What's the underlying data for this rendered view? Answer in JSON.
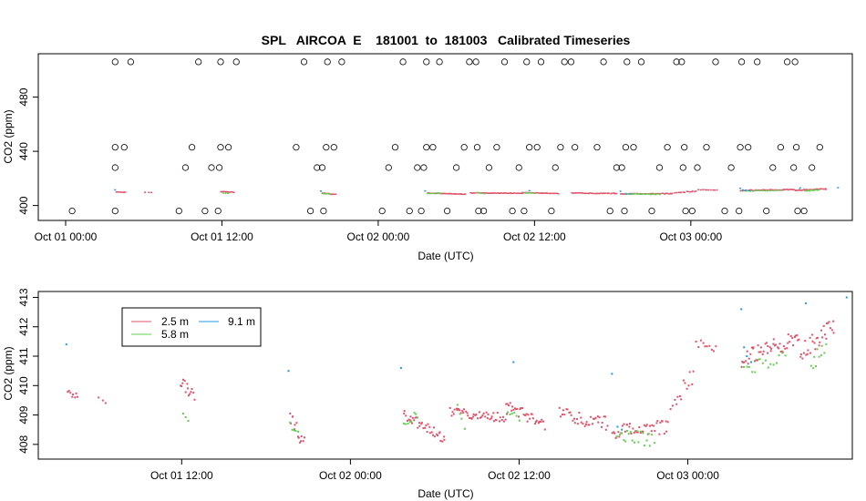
{
  "chart_data": [
    {
      "type": "scatter",
      "title": "SPL   AIRCOA  E    181001  to  181003   Calibrated Timeseries",
      "xlabel": "Date (UTC)",
      "ylabel": "CO2 (ppm)",
      "x_ticks": [
        "Oct 01 00:00",
        "Oct 01 12:00",
        "Oct 02 00:00",
        "Oct 02 12:00",
        "Oct 03 00:00"
      ],
      "x_tick_hours": [
        0,
        12,
        24,
        36,
        48
      ],
      "xlim_hours": [
        -2.1,
        60.4
      ],
      "y_ticks": [
        400,
        440,
        480
      ],
      "ylim": [
        389,
        512
      ],
      "reference_points": [
        {
          "h": 0.5,
          "v": 396
        },
        {
          "h": 3.8,
          "v": 396
        },
        {
          "h": 3.8,
          "v": 428
        },
        {
          "h": 3.8,
          "v": 443
        },
        {
          "h": 3.8,
          "v": 506
        },
        {
          "h": 4.5,
          "v": 443
        },
        {
          "h": 5.0,
          "v": 506
        },
        {
          "h": 8.7,
          "v": 396
        },
        {
          "h": 9.2,
          "v": 428
        },
        {
          "h": 9.7,
          "v": 443
        },
        {
          "h": 10.2,
          "v": 506
        },
        {
          "h": 10.7,
          "v": 396
        },
        {
          "h": 11.2,
          "v": 428
        },
        {
          "h": 11.7,
          "v": 396
        },
        {
          "h": 11.8,
          "v": 428
        },
        {
          "h": 11.9,
          "v": 443
        },
        {
          "h": 11.9,
          "v": 506
        },
        {
          "h": 12.5,
          "v": 443
        },
        {
          "h": 13.1,
          "v": 506
        },
        {
          "h": 17.7,
          "v": 443
        },
        {
          "h": 18.3,
          "v": 506
        },
        {
          "h": 18.8,
          "v": 396
        },
        {
          "h": 19.3,
          "v": 428
        },
        {
          "h": 19.7,
          "v": 428
        },
        {
          "h": 19.8,
          "v": 396
        },
        {
          "h": 20.0,
          "v": 443
        },
        {
          "h": 20.1,
          "v": 506
        },
        {
          "h": 20.6,
          "v": 443
        },
        {
          "h": 21.2,
          "v": 506
        },
        {
          "h": 24.3,
          "v": 396
        },
        {
          "h": 24.8,
          "v": 428
        },
        {
          "h": 25.3,
          "v": 443
        },
        {
          "h": 25.9,
          "v": 506
        },
        {
          "h": 26.4,
          "v": 396
        },
        {
          "h": 27.0,
          "v": 428
        },
        {
          "h": 27.3,
          "v": 396
        },
        {
          "h": 27.5,
          "v": 428
        },
        {
          "h": 27.7,
          "v": 443
        },
        {
          "h": 27.7,
          "v": 506
        },
        {
          "h": 28.2,
          "v": 443
        },
        {
          "h": 28.7,
          "v": 506
        },
        {
          "h": 29.3,
          "v": 396
        },
        {
          "h": 30.0,
          "v": 428
        },
        {
          "h": 30.6,
          "v": 443
        },
        {
          "h": 31.0,
          "v": 506
        },
        {
          "h": 31.5,
          "v": 506
        },
        {
          "h": 31.6,
          "v": 443
        },
        {
          "h": 31.7,
          "v": 396
        },
        {
          "h": 32.1,
          "v": 396
        },
        {
          "h": 32.5,
          "v": 428
        },
        {
          "h": 33.1,
          "v": 443
        },
        {
          "h": 33.7,
          "v": 506
        },
        {
          "h": 34.3,
          "v": 396
        },
        {
          "h": 34.8,
          "v": 428
        },
        {
          "h": 35.2,
          "v": 396
        },
        {
          "h": 35.4,
          "v": 506
        },
        {
          "h": 35.6,
          "v": 443
        },
        {
          "h": 36.2,
          "v": 443
        },
        {
          "h": 36.5,
          "v": 506
        },
        {
          "h": 37.3,
          "v": 396
        },
        {
          "h": 37.6,
          "v": 428
        },
        {
          "h": 38.0,
          "v": 443
        },
        {
          "h": 38.3,
          "v": 506
        },
        {
          "h": 38.8,
          "v": 506
        },
        {
          "h": 39.1,
          "v": 443
        },
        {
          "h": 40.8,
          "v": 443
        },
        {
          "h": 41.3,
          "v": 506
        },
        {
          "h": 41.8,
          "v": 396
        },
        {
          "h": 42.3,
          "v": 428
        },
        {
          "h": 42.7,
          "v": 428
        },
        {
          "h": 42.9,
          "v": 396
        },
        {
          "h": 43.0,
          "v": 443
        },
        {
          "h": 43.1,
          "v": 506
        },
        {
          "h": 43.6,
          "v": 443
        },
        {
          "h": 44.2,
          "v": 506
        },
        {
          "h": 45.0,
          "v": 396
        },
        {
          "h": 45.6,
          "v": 428
        },
        {
          "h": 46.2,
          "v": 443
        },
        {
          "h": 46.9,
          "v": 506
        },
        {
          "h": 47.3,
          "v": 506
        },
        {
          "h": 47.4,
          "v": 428
        },
        {
          "h": 47.5,
          "v": 443
        },
        {
          "h": 47.6,
          "v": 396
        },
        {
          "h": 48.1,
          "v": 396
        },
        {
          "h": 48.5,
          "v": 428
        },
        {
          "h": 49.2,
          "v": 443
        },
        {
          "h": 49.9,
          "v": 506
        },
        {
          "h": 50.6,
          "v": 396
        },
        {
          "h": 51.1,
          "v": 428
        },
        {
          "h": 51.7,
          "v": 396
        },
        {
          "h": 51.8,
          "v": 443
        },
        {
          "h": 51.9,
          "v": 506
        },
        {
          "h": 52.4,
          "v": 443
        },
        {
          "h": 53.1,
          "v": 506
        },
        {
          "h": 53.8,
          "v": 396
        },
        {
          "h": 54.3,
          "v": 428
        },
        {
          "h": 54.9,
          "v": 443
        },
        {
          "h": 55.4,
          "v": 506
        },
        {
          "h": 55.9,
          "v": 428
        },
        {
          "h": 56.0,
          "v": 506
        },
        {
          "h": 56.1,
          "v": 443
        },
        {
          "h": 56.2,
          "v": 396
        },
        {
          "h": 56.7,
          "v": 396
        },
        {
          "h": 57.3,
          "v": 428
        },
        {
          "h": 57.9,
          "v": 443
        }
      ]
    },
    {
      "type": "scatter",
      "xlabel": "Date (UTC)",
      "ylabel": "CO2 (ppm)",
      "x_ticks": [
        "Oct 01 12:00",
        "Oct 02 00:00",
        "Oct 02 12:00",
        "Oct 03 00:00"
      ],
      "x_tick_hours": [
        12,
        24,
        36,
        48
      ],
      "xlim_hours": [
        1.8,
        59.7
      ],
      "y_ticks": [
        408,
        409,
        410,
        411,
        412,
        413
      ],
      "ylim": [
        407.5,
        413.2
      ],
      "legend_position": "top-left",
      "series": [
        {
          "name": "2.5 m",
          "color": "#DF536B",
          "segments": [
            {
              "h0": 3.9,
              "h1": 4.6,
              "v0": 410.0,
              "v1": 409.6,
              "n": 8,
              "s": 0.22
            },
            {
              "h0": 6.1,
              "h1": 6.6,
              "v0": 409.6,
              "v1": 409.5,
              "n": 3,
              "s": 0.15
            },
            {
              "h0": 11.9,
              "h1": 12.9,
              "v0": 410.1,
              "v1": 409.7,
              "n": 14,
              "s": 0.22
            },
            {
              "h0": 19.7,
              "h1": 20.7,
              "v0": 409.0,
              "v1": 408.0,
              "n": 14,
              "s": 0.25
            },
            {
              "h0": 27.8,
              "h1": 30.7,
              "v0": 409.0,
              "v1": 408.2,
              "n": 36,
              "s": 0.2
            },
            {
              "h0": 31.1,
              "h1": 35.1,
              "v0": 409.1,
              "v1": 408.9,
              "n": 48,
              "s": 0.17
            },
            {
              "h0": 35.1,
              "h1": 37.8,
              "v0": 409.4,
              "v1": 408.6,
              "n": 32,
              "s": 0.2
            },
            {
              "h0": 38.9,
              "h1": 42.3,
              "v0": 409.0,
              "v1": 408.7,
              "n": 38,
              "s": 0.25
            },
            {
              "h0": 42.6,
              "h1": 46.6,
              "v0": 408.4,
              "v1": 408.6,
              "n": 44,
              "s": 0.25
            },
            {
              "h0": 46.8,
              "h1": 48.4,
              "v0": 409.4,
              "v1": 410.3,
              "n": 14,
              "s": 0.3
            },
            {
              "h0": 48.6,
              "h1": 50.0,
              "v0": 411.5,
              "v1": 411.3,
              "n": 10,
              "s": 0.2
            },
            {
              "h0": 51.8,
              "h1": 55.9,
              "v0": 410.9,
              "v1": 411.6,
              "n": 52,
              "s": 0.3
            },
            {
              "h0": 56.0,
              "h1": 58.4,
              "v0": 411.1,
              "v1": 412.1,
              "n": 30,
              "s": 0.35
            }
          ]
        },
        {
          "name": "5.8 m",
          "color": "#61D04F",
          "segments": [
            {
              "h0": 12.1,
              "h1": 12.5,
              "v0": 409.1,
              "v1": 408.9,
              "n": 3,
              "s": 0.1
            },
            {
              "h0": 19.7,
              "h1": 20.3,
              "v0": 408.6,
              "v1": 408.3,
              "n": 5,
              "s": 0.15
            },
            {
              "h0": 27.8,
              "h1": 28.8,
              "v0": 408.8,
              "v1": 409.0,
              "n": 8,
              "s": 0.15
            },
            {
              "h0": 31.6,
              "h1": 32.1,
              "v0": 409.5,
              "v1": 408.4,
              "n": 4,
              "s": 0.2
            },
            {
              "h0": 35.2,
              "h1": 36.0,
              "v0": 409.2,
              "v1": 408.9,
              "n": 6,
              "s": 0.15
            },
            {
              "h0": 43.0,
              "h1": 45.6,
              "v0": 408.4,
              "v1": 408.1,
              "n": 20,
              "s": 0.25
            },
            {
              "h0": 52.0,
              "h1": 54.9,
              "v0": 410.5,
              "v1": 410.9,
              "n": 16,
              "s": 0.25
            },
            {
              "h0": 56.8,
              "h1": 57.8,
              "v0": 410.8,
              "v1": 411.2,
              "n": 10,
              "s": 0.3
            }
          ]
        },
        {
          "name": "9.1 m",
          "color": "#2297E6",
          "points": [
            {
              "h": 3.8,
              "v": 411.4
            },
            {
              "h": 19.6,
              "v": 410.5
            },
            {
              "h": 27.6,
              "v": 410.6
            },
            {
              "h": 35.6,
              "v": 410.8
            },
            {
              "h": 42.6,
              "v": 410.4
            },
            {
              "h": 43.0,
              "v": 408.6
            },
            {
              "h": 43.3,
              "v": 408.5
            },
            {
              "h": 51.8,
              "v": 412.6
            },
            {
              "h": 52.0,
              "v": 411.3
            },
            {
              "h": 52.2,
              "v": 411.0
            },
            {
              "h": 52.5,
              "v": 410.8
            },
            {
              "h": 56.4,
              "v": 412.8
            },
            {
              "h": 59.3,
              "v": 413.0
            }
          ]
        }
      ]
    }
  ]
}
